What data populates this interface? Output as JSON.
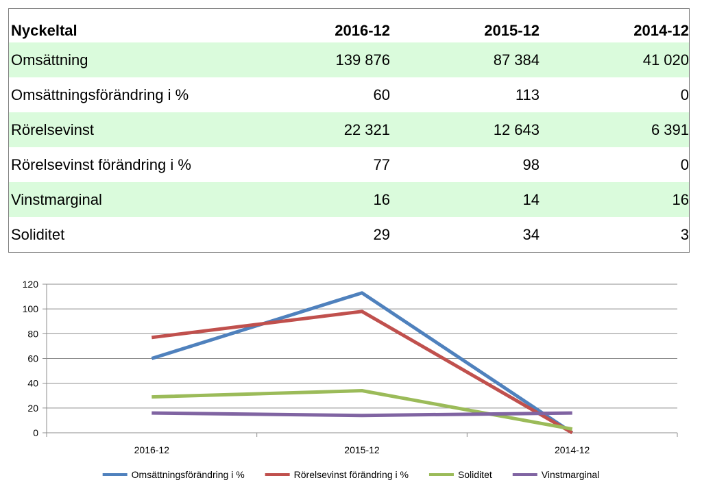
{
  "table": {
    "header": {
      "label": "Nyckeltal",
      "cols": [
        "2016-12",
        "2015-12",
        "2014-12"
      ]
    },
    "rows": [
      {
        "label": "Omsättning",
        "values": [
          "139 876",
          "87 384",
          "41 020"
        ],
        "shaded": true
      },
      {
        "label": "Omsättningsförändring i %",
        "values": [
          "60",
          "113",
          "0"
        ],
        "shaded": false
      },
      {
        "label": "Rörelsevinst",
        "values": [
          "22 321",
          "12 643",
          "6 391"
        ],
        "shaded": true
      },
      {
        "label": "Rörelsevinst förändring i %",
        "values": [
          "77",
          "98",
          "0"
        ],
        "shaded": false
      },
      {
        "label": "Vinstmarginal",
        "values": [
          "16",
          "14",
          "16"
        ],
        "shaded": true
      },
      {
        "label": "Soliditet",
        "values": [
          "29",
          "34",
          "3"
        ],
        "shaded": false
      }
    ]
  },
  "chart_data": {
    "type": "line",
    "categories": [
      "2016-12",
      "2015-12",
      "2014-12"
    ],
    "ylim": [
      0,
      120
    ],
    "yticks": [
      0,
      20,
      40,
      60,
      80,
      100,
      120
    ],
    "grid": true,
    "legend": "bottom",
    "series": [
      {
        "name": "Omsättningsförändring i %",
        "values": [
          60,
          113,
          0
        ],
        "color": "#4f81bd"
      },
      {
        "name": "Rörelsevinst förändring i %",
        "values": [
          77,
          98,
          0
        ],
        "color": "#c0504d"
      },
      {
        "name": "Soliditet",
        "values": [
          29,
          34,
          3
        ],
        "color": "#9bbb59"
      },
      {
        "name": "Vinstmarginal",
        "values": [
          16,
          14,
          16
        ],
        "color": "#8064a2"
      }
    ]
  }
}
